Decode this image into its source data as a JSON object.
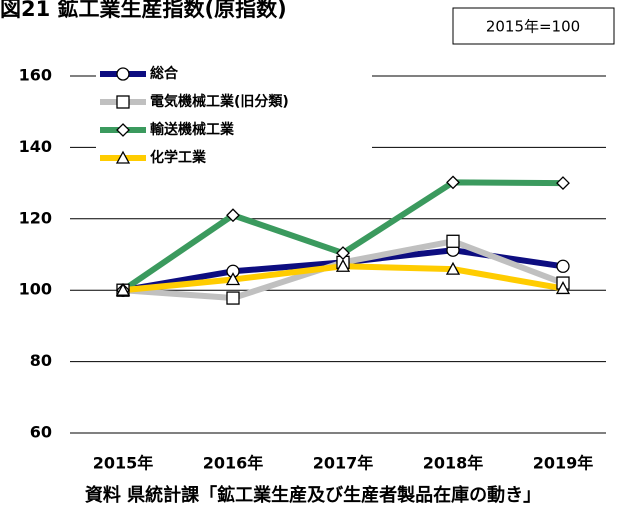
{
  "chart_data": {
    "type": "line",
    "title": "図21 鉱工業生産指数(原指数)",
    "base_note": "2015年=100",
    "source": "資料 県統計課「鉱工業生産及び生産者製品在庫の動き」",
    "categories": [
      "2015年",
      "2016年",
      "2017年",
      "2018年",
      "2019年"
    ],
    "series": [
      {
        "name": "総合",
        "color": "#0d0d80",
        "marker": "circle",
        "values": [
          100,
          105.3,
          107.8,
          111.2,
          106.7
        ]
      },
      {
        "name": "電気機械工業(旧分類)",
        "color": "#c0c0c0",
        "marker": "square",
        "values": [
          100,
          97.8,
          107.8,
          113.7,
          102
        ]
      },
      {
        "name": "輸送機械工業",
        "color": "#3b9a5e",
        "marker": "diamond",
        "values": [
          100,
          121,
          110.4,
          130.2,
          130
        ]
      },
      {
        "name": "化学工業",
        "color": "#ffcc00",
        "marker": "triangle",
        "values": [
          100,
          103,
          106.7,
          105.9,
          100.5
        ]
      }
    ],
    "ylim": [
      60,
      160
    ],
    "yticks": [
      60,
      80,
      100,
      120,
      140,
      160
    ],
    "grid": true,
    "legend": "upper left"
  }
}
